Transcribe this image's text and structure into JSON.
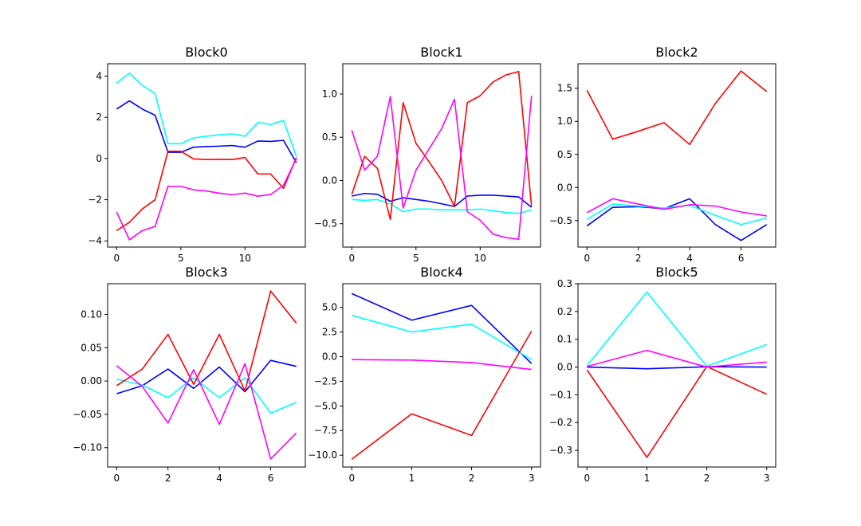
{
  "chart_data": [
    {
      "type": "line",
      "title": "Block0",
      "x": [
        0,
        1,
        2,
        3,
        4,
        5,
        6,
        7,
        8,
        9,
        10,
        11,
        12,
        13,
        14
      ],
      "xlim": [
        -0.7,
        14.7
      ],
      "ylim": [
        -4.3,
        4.6
      ],
      "xticks": [
        0,
        5,
        10
      ],
      "yticks": [
        -4,
        -2,
        0,
        2,
        4
      ],
      "series": [
        {
          "color": "#0000ff",
          "values": [
            2.4,
            2.8,
            2.4,
            2.1,
            0.3,
            0.3,
            0.55,
            0.58,
            0.6,
            0.63,
            0.55,
            0.85,
            0.83,
            0.88,
            -0.2
          ]
        },
        {
          "color": "#00ffff",
          "values": [
            3.65,
            4.15,
            3.55,
            3.15,
            0.72,
            0.72,
            1.0,
            1.08,
            1.15,
            1.2,
            1.08,
            1.75,
            1.65,
            1.85,
            0.1
          ]
        },
        {
          "color": "#ff0000",
          "values": [
            -3.5,
            -3.1,
            -2.45,
            -2.0,
            0.35,
            0.35,
            -0.02,
            -0.05,
            -0.04,
            -0.05,
            0.05,
            -0.75,
            -0.75,
            -1.45,
            0.05
          ]
        },
        {
          "color": "#ff00ff",
          "values": [
            -2.6,
            -3.95,
            -3.5,
            -3.3,
            -1.35,
            -1.35,
            -1.52,
            -1.58,
            -1.68,
            -1.76,
            -1.68,
            -1.83,
            -1.75,
            -1.3,
            0.0
          ]
        }
      ]
    },
    {
      "type": "line",
      "title": "Block1",
      "x": [
        0,
        1,
        2,
        3,
        4,
        5,
        6,
        7,
        8,
        9,
        10,
        11,
        12,
        13,
        14
      ],
      "xlim": [
        -0.7,
        14.7
      ],
      "ylim": [
        -0.77,
        1.35
      ],
      "xticks": [
        0,
        5,
        10
      ],
      "yticks": [
        -0.5,
        0.0,
        0.5,
        1.0
      ],
      "series": [
        {
          "color": "#0000ff",
          "values": [
            -0.18,
            -0.15,
            -0.16,
            -0.24,
            -0.2,
            -0.22,
            -0.24,
            -0.27,
            -0.3,
            -0.18,
            -0.17,
            -0.17,
            -0.18,
            -0.19,
            -0.31
          ]
        },
        {
          "color": "#00ffff",
          "values": [
            -0.22,
            -0.23,
            -0.22,
            -0.27,
            -0.36,
            -0.33,
            -0.33,
            -0.34,
            -0.34,
            -0.34,
            -0.33,
            -0.35,
            -0.37,
            -0.38,
            -0.34
          ]
        },
        {
          "color": "#ff0000",
          "values": [
            -0.16,
            0.28,
            0.14,
            -0.45,
            0.9,
            0.43,
            0.22,
            0.0,
            -0.3,
            0.9,
            0.98,
            1.14,
            1.22,
            1.26,
            -0.3
          ]
        },
        {
          "color": "#ff00ff",
          "values": [
            0.58,
            0.12,
            0.28,
            0.97,
            -0.32,
            0.12,
            0.36,
            0.6,
            0.94,
            -0.36,
            -0.46,
            -0.62,
            -0.66,
            -0.68,
            0.98
          ]
        }
      ]
    },
    {
      "type": "line",
      "title": "Block2",
      "x": [
        0,
        1,
        2,
        3,
        4,
        5,
        6,
        7
      ],
      "xlim": [
        -0.35,
        7.35
      ],
      "ylim": [
        -0.9,
        1.87
      ],
      "xticks": [
        0,
        2,
        4,
        6
      ],
      "yticks": [
        -0.5,
        0.0,
        0.5,
        1.0,
        1.5
      ],
      "series": [
        {
          "color": "#0000ff",
          "values": [
            -0.58,
            -0.3,
            -0.29,
            -0.32,
            -0.17,
            -0.56,
            -0.8,
            -0.56
          ]
        },
        {
          "color": "#00ffff",
          "values": [
            -0.48,
            -0.25,
            -0.28,
            -0.31,
            -0.27,
            -0.42,
            -0.56,
            -0.46
          ]
        },
        {
          "color": "#ff0000",
          "values": [
            1.47,
            0.73,
            0.85,
            0.98,
            0.65,
            1.27,
            1.76,
            1.45
          ]
        },
        {
          "color": "#ff00ff",
          "values": [
            -0.38,
            -0.17,
            -0.25,
            -0.33,
            -0.26,
            -0.28,
            -0.37,
            -0.43
          ]
        }
      ]
    },
    {
      "type": "line",
      "title": "Block3",
      "x": [
        0,
        1,
        2,
        3,
        4,
        5,
        6,
        7
      ],
      "xlim": [
        -0.35,
        7.35
      ],
      "ylim": [
        -0.129,
        0.146
      ],
      "xticks": [
        0,
        2,
        4,
        6
      ],
      "yticks": [
        -0.1,
        -0.05,
        0.0,
        0.05,
        0.1
      ],
      "ytickLabels": [
        "−0.10",
        "−0.05",
        "0.00",
        "0.05",
        "0.10"
      ],
      "series": [
        {
          "color": "#0000ff",
          "values": [
            -0.019,
            -0.007,
            0.018,
            -0.011,
            0.021,
            -0.016,
            0.031,
            0.022
          ]
        },
        {
          "color": "#00ffff",
          "values": [
            0.003,
            -0.006,
            -0.025,
            0.005,
            -0.025,
            0.005,
            -0.048,
            -0.032
          ]
        },
        {
          "color": "#ff0000",
          "values": [
            -0.007,
            0.018,
            0.07,
            -0.005,
            0.07,
            -0.015,
            0.135,
            0.087
          ]
        },
        {
          "color": "#ff00ff",
          "values": [
            0.023,
            -0.008,
            -0.063,
            0.017,
            -0.065,
            0.026,
            -0.117,
            -0.078
          ]
        }
      ]
    },
    {
      "type": "line",
      "title": "Block4",
      "x": [
        0,
        1,
        2,
        3
      ],
      "xlim": [
        -0.15,
        3.15
      ],
      "ylim": [
        -11.2,
        7.4
      ],
      "xticks": [
        0,
        1,
        2,
        3
      ],
      "yticks": [
        -10.0,
        -7.5,
        -5.0,
        -2.5,
        0.0,
        2.5,
        5.0
      ],
      "ytickLabels": [
        "−10.0",
        "−7.5",
        "−5.0",
        "−2.5",
        "0.0",
        "2.5",
        "5.0"
      ],
      "series": [
        {
          "color": "#0000ff",
          "values": [
            6.4,
            3.7,
            5.2,
            -0.7
          ]
        },
        {
          "color": "#00ffff",
          "values": [
            4.2,
            2.5,
            3.3,
            -0.3
          ]
        },
        {
          "color": "#ff0000",
          "values": [
            -10.4,
            -5.8,
            -8.0,
            2.6
          ]
        },
        {
          "color": "#ff00ff",
          "values": [
            -0.3,
            -0.35,
            -0.6,
            -1.3
          ]
        }
      ]
    },
    {
      "type": "line",
      "title": "Block5",
      "x": [
        0,
        1,
        2,
        3
      ],
      "xlim": [
        -0.15,
        3.15
      ],
      "ylim": [
        -0.36,
        0.3
      ],
      "xticks": [
        0,
        1,
        2,
        3
      ],
      "yticks": [
        -0.3,
        -0.2,
        -0.1,
        0.0,
        0.1,
        0.2,
        0.3
      ],
      "ytickLabels": [
        "−0.3",
        "−0.2",
        "−0.1",
        "0.0",
        "0.1",
        "0.2",
        "0.3"
      ],
      "series": [
        {
          "color": "#0000ff",
          "values": [
            0.0,
            -0.006,
            0.001,
            0.0
          ]
        },
        {
          "color": "#00ffff",
          "values": [
            0.005,
            0.27,
            0.003,
            0.081
          ]
        },
        {
          "color": "#ff0000",
          "values": [
            -0.01,
            -0.325,
            0.002,
            -0.098
          ]
        },
        {
          "color": "#ff00ff",
          "values": [
            0.002,
            0.06,
            0.0,
            0.018
          ]
        }
      ]
    }
  ]
}
